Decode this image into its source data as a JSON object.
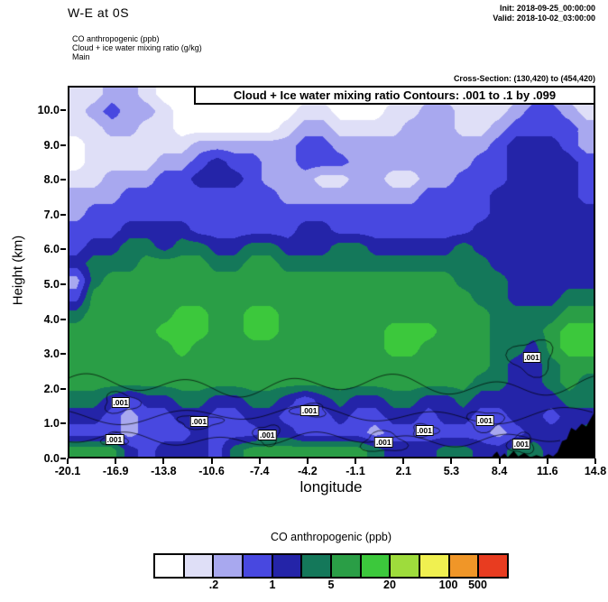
{
  "header": {
    "title": "W-E at 0S",
    "init": "Init: 2018-09-25_00:00:00",
    "valid": "Valid: 2018-10-02_03:00:00",
    "field1": "CO anthropogenic (ppb)",
    "field2": "Cloud + ice water mixing ratio (g/kg)",
    "field3": "Main",
    "cross_section": "Cross-Section: (130,420) to (454,420)"
  },
  "chart_data": {
    "type": "heatmap",
    "title": "W-E at 0S cross-section of CO anthropogenic (ppb), shaded, with Cloud + Ice water mixing ratio contours",
    "contours_label": "Cloud + Ice water mixing ratio Contours: .001 to .1 by .099",
    "contours": {
      "field": "Cloud + Ice water mixing ratio",
      "from": 0.001,
      "to": 0.1,
      "by": 0.099
    },
    "xlabel": "longitude",
    "ylabel": "Height (km)",
    "xlim": [
      -20.1,
      14.8
    ],
    "ylim": [
      0,
      10.7
    ],
    "x_ticks": [
      "-20.1",
      "-16.9",
      "-13.8",
      "-10.6",
      "-7.4",
      "-4.2",
      "-1.1",
      "2.1",
      "5.3",
      "8.4",
      "11.6",
      "14.8"
    ],
    "y_ticks": [
      "0.0",
      "1.0",
      "2.0",
      "3.0",
      "4.0",
      "5.0",
      "6.0",
      "7.0",
      "8.0",
      "9.0",
      "10.0"
    ],
    "colorbar": {
      "title": "CO anthropogenic (ppb)",
      "colors": [
        "#ffffff",
        "#dfdff7",
        "#a8a8ef",
        "#4848e0",
        "#2424a8",
        "#14785a",
        "#2a9e46",
        "#3cc83c",
        "#9edc3c",
        "#f0f050",
        "#f09628",
        "#e83c20"
      ],
      "tick_labels": [
        ".2",
        "1",
        "5",
        "20",
        "100",
        "500"
      ],
      "tick_boundaries": [
        2,
        4,
        6,
        8,
        10,
        11
      ]
    },
    "grid_note": "grid_levels are color-bin indices (0=lowest/white .. 7=bright green) estimated from the shaded field; rows run top (10.7 km) to bottom (0 km), columns run -20.1 to 14.8 longitude",
    "grid_levels": [
      [
        1,
        1,
        2,
        2,
        1,
        0,
        0,
        0,
        0,
        0,
        0,
        0,
        0,
        0,
        0,
        0,
        0,
        0,
        0,
        1,
        1,
        1,
        1,
        0,
        1,
        1,
        2,
        2,
        1,
        1
      ],
      [
        1,
        2,
        3,
        2,
        2,
        1,
        0,
        0,
        0,
        0,
        0,
        0,
        0,
        1,
        1,
        0,
        0,
        0,
        1,
        1,
        2,
        2,
        1,
        1,
        1,
        2,
        3,
        3,
        2,
        1
      ],
      [
        1,
        1,
        2,
        2,
        1,
        1,
        0,
        0,
        0,
        0,
        0,
        0,
        1,
        2,
        2,
        1,
        1,
        1,
        1,
        2,
        2,
        2,
        1,
        1,
        2,
        3,
        3,
        3,
        3,
        2
      ],
      [
        0,
        1,
        1,
        1,
        1,
        1,
        1,
        2,
        2,
        2,
        2,
        2,
        2,
        3,
        3,
        2,
        2,
        2,
        2,
        2,
        2,
        2,
        2,
        2,
        3,
        4,
        4,
        4,
        3,
        2
      ],
      [
        0,
        1,
        1,
        1,
        1,
        2,
        2,
        3,
        4,
        3,
        3,
        2,
        2,
        3,
        3,
        3,
        2,
        2,
        2,
        2,
        2,
        2,
        2,
        3,
        3,
        4,
        4,
        4,
        4,
        3
      ],
      [
        1,
        1,
        2,
        2,
        2,
        3,
        3,
        4,
        4,
        4,
        3,
        2,
        2,
        2,
        1,
        1,
        2,
        2,
        1,
        1,
        2,
        2,
        3,
        3,
        3,
        4,
        4,
        4,
        4,
        3
      ],
      [
        2,
        2,
        2,
        3,
        3,
        3,
        3,
        3,
        3,
        3,
        3,
        3,
        2,
        2,
        2,
        2,
        2,
        2,
        2,
        2,
        3,
        3,
        3,
        3,
        4,
        4,
        4,
        4,
        4,
        3
      ],
      [
        2,
        3,
        3,
        3,
        3,
        3,
        3,
        3,
        3,
        3,
        3,
        3,
        3,
        3,
        3,
        3,
        3,
        3,
        3,
        3,
        3,
        3,
        3,
        3,
        4,
        4,
        4,
        4,
        4,
        4
      ],
      [
        3,
        3,
        3,
        4,
        4,
        4,
        4,
        3,
        3,
        3,
        3,
        3,
        3,
        4,
        4,
        3,
        3,
        3,
        3,
        3,
        3,
        3,
        3,
        4,
        4,
        4,
        4,
        4,
        4,
        4
      ],
      [
        3,
        4,
        4,
        5,
        5,
        4,
        5,
        5,
        4,
        4,
        5,
        5,
        4,
        4,
        4,
        5,
        5,
        4,
        4,
        4,
        4,
        4,
        5,
        4,
        4,
        4,
        4,
        4,
        4,
        4
      ],
      [
        4,
        5,
        5,
        5,
        6,
        6,
        6,
        6,
        5,
        5,
        6,
        6,
        5,
        5,
        5,
        5,
        5,
        5,
        5,
        5,
        5,
        5,
        5,
        5,
        4,
        4,
        4,
        4,
        4,
        4
      ],
      [
        2,
        5,
        6,
        6,
        6,
        6,
        6,
        6,
        6,
        6,
        6,
        6,
        6,
        6,
        6,
        6,
        6,
        6,
        6,
        6,
        6,
        6,
        5,
        5,
        5,
        4,
        4,
        4,
        4,
        4
      ],
      [
        3,
        6,
        6,
        6,
        6,
        6,
        6,
        6,
        6,
        6,
        6,
        6,
        6,
        6,
        6,
        6,
        6,
        6,
        6,
        6,
        6,
        6,
        6,
        5,
        5,
        4,
        4,
        4,
        5,
        5
      ],
      [
        5,
        6,
        6,
        6,
        6,
        6,
        7,
        7,
        6,
        6,
        7,
        7,
        6,
        6,
        6,
        6,
        6,
        6,
        6,
        6,
        6,
        6,
        6,
        6,
        5,
        5,
        5,
        5,
        6,
        6
      ],
      [
        6,
        6,
        6,
        6,
        6,
        7,
        7,
        7,
        6,
        6,
        7,
        7,
        6,
        6,
        6,
        6,
        6,
        6,
        7,
        7,
        7,
        6,
        6,
        6,
        5,
        5,
        5,
        6,
        7,
        7
      ],
      [
        6,
        6,
        6,
        6,
        6,
        6,
        7,
        6,
        6,
        6,
        6,
        6,
        6,
        6,
        6,
        6,
        6,
        6,
        7,
        7,
        6,
        6,
        6,
        6,
        5,
        5,
        4,
        6,
        7,
        7
      ],
      [
        6,
        6,
        6,
        6,
        6,
        6,
        6,
        6,
        6,
        6,
        6,
        6,
        6,
        6,
        6,
        6,
        6,
        6,
        6,
        6,
        6,
        6,
        6,
        6,
        5,
        4,
        4,
        5,
        6,
        6
      ],
      [
        6,
        6,
        6,
        6,
        6,
        6,
        6,
        6,
        6,
        6,
        6,
        6,
        6,
        6,
        6,
        6,
        6,
        6,
        6,
        6,
        6,
        6,
        6,
        5,
        5,
        4,
        4,
        5,
        6,
        5
      ],
      [
        5,
        5,
        4,
        3,
        4,
        4,
        5,
        5,
        4,
        4,
        5,
        5,
        4,
        3,
        4,
        5,
        4,
        4,
        5,
        5,
        4,
        4,
        5,
        4,
        4,
        4,
        4,
        4,
        5,
        5
      ],
      [
        4,
        4,
        3,
        2,
        3,
        3,
        4,
        4,
        3,
        3,
        4,
        4,
        3,
        3,
        3,
        4,
        3,
        3,
        4,
        4,
        3,
        4,
        4,
        3,
        3,
        4,
        4,
        3,
        4,
        4
      ],
      [
        3,
        3,
        3,
        2,
        3,
        3,
        3,
        4,
        3,
        3,
        3,
        4,
        4,
        3,
        3,
        3,
        3,
        2,
        3,
        3,
        3,
        3,
        3,
        3,
        2,
        3,
        4,
        4,
        4,
        5
      ],
      [
        6,
        6,
        6,
        4,
        3,
        4,
        4,
        4,
        3,
        5,
        6,
        6,
        6,
        6,
        6,
        6,
        6,
        5,
        4,
        4,
        4,
        5,
        5,
        4,
        4,
        5,
        5,
        4,
        4,
        4
      ]
    ],
    "terrain_profile": [
      [
        -20.1,
        0
      ],
      [
        7.9,
        0
      ],
      [
        8.1,
        0.12
      ],
      [
        8.3,
        0.2
      ],
      [
        8.5,
        0.04
      ],
      [
        8.8,
        0.15
      ],
      [
        9.0,
        0.03
      ],
      [
        9.4,
        0.22
      ],
      [
        9.7,
        0.06
      ],
      [
        10.1,
        0.16
      ],
      [
        10.5,
        0.03
      ],
      [
        10.9,
        0.1
      ],
      [
        11.3,
        0.04
      ],
      [
        11.7,
        0.12
      ],
      [
        12.0,
        0.06
      ],
      [
        12.3,
        0.18
      ],
      [
        12.6,
        0.5
      ],
      [
        12.9,
        0.55
      ],
      [
        13.2,
        0.88
      ],
      [
        13.5,
        0.8
      ],
      [
        13.9,
        1.0
      ],
      [
        14.2,
        0.92
      ],
      [
        14.5,
        1.15
      ],
      [
        14.8,
        1.38
      ]
    ],
    "contour_labels": [
      {
        "lon": -17.0,
        "km": 0.55,
        "text": ".001"
      },
      {
        "lon": -16.6,
        "km": 1.6,
        "text": ".001"
      },
      {
        "lon": -11.4,
        "km": 1.05,
        "text": ".001"
      },
      {
        "lon": -6.9,
        "km": 0.68,
        "text": ".001"
      },
      {
        "lon": -4.1,
        "km": 1.38,
        "text": ".001"
      },
      {
        "lon": 0.8,
        "km": 0.46,
        "text": ".001"
      },
      {
        "lon": 3.5,
        "km": 0.8,
        "text": ".001"
      },
      {
        "lon": 7.5,
        "km": 1.08,
        "text": ".001"
      },
      {
        "lon": 10.6,
        "km": 2.9,
        "text": ".001"
      },
      {
        "lon": 9.9,
        "km": 0.42,
        "text": ".001"
      }
    ]
  }
}
